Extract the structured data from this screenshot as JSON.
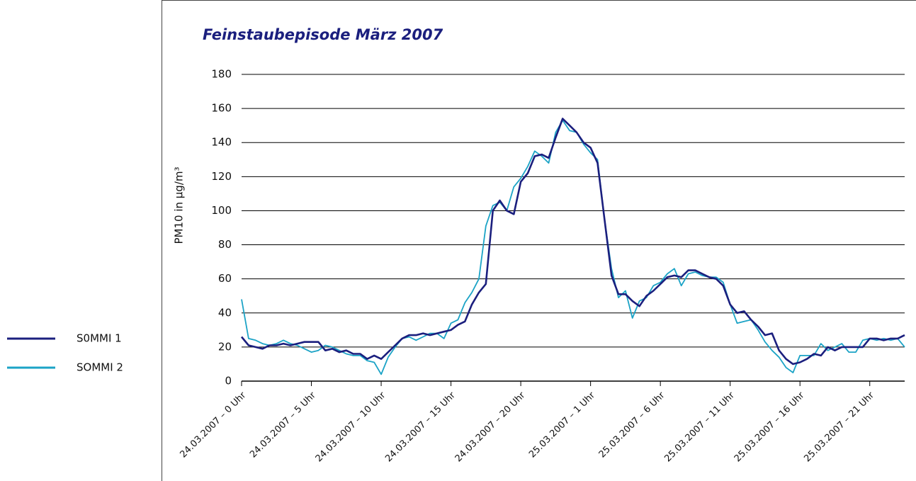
{
  "chart_data": {
    "type": "line",
    "title": "Feinstaubepisode März 2007",
    "y_label": "PM10 in µg/m³",
    "categories": [
      "24.03.2007 – 0 Uhr",
      null,
      null,
      null,
      null,
      null,
      null,
      null,
      null,
      null,
      "24.03.2007 – 5 Uhr",
      null,
      null,
      null,
      null,
      null,
      null,
      null,
      null,
      null,
      "24.03.2007 – 10 Uhr",
      null,
      null,
      null,
      null,
      null,
      null,
      null,
      null,
      null,
      "24.03.2007 – 15 Uhr",
      null,
      null,
      null,
      null,
      null,
      null,
      null,
      null,
      null,
      "24.03.2007 – 20 Uhr",
      null,
      null,
      null,
      null,
      null,
      null,
      null,
      null,
      null,
      "25.03.2007 – 1 Uhr",
      null,
      null,
      null,
      null,
      null,
      null,
      null,
      null,
      null,
      "25.03.2007 – 6 Uhr",
      null,
      null,
      null,
      null,
      null,
      null,
      null,
      null,
      null,
      "25.03.2007 – 11 Uhr",
      null,
      null,
      null,
      null,
      null,
      null,
      null,
      null,
      null,
      "25.03.2007 – 16 Uhr",
      null,
      null,
      null,
      null,
      null,
      null,
      null,
      null,
      null,
      "25.03.2007 – 21 Uhr",
      null,
      null,
      null,
      null,
      null
    ],
    "series": [
      {
        "name": "S0MMI 1",
        "color": "#1b1f7e",
        "values": [
          26,
          21,
          20,
          19,
          21,
          21,
          22,
          21,
          22,
          23,
          23,
          23,
          18,
          19,
          17,
          18,
          16,
          16,
          13,
          15,
          13,
          17,
          21,
          25,
          27,
          27,
          28,
          27,
          28,
          29,
          30,
          33,
          35,
          45,
          52,
          57,
          100,
          106,
          100,
          98,
          117,
          122,
          132,
          133,
          131,
          143,
          154,
          150,
          146,
          140,
          137,
          128,
          95,
          62,
          51,
          51,
          47,
          44,
          50,
          53,
          57,
          61,
          62,
          61,
          65,
          65,
          63,
          61,
          60,
          56,
          45,
          40,
          41,
          36,
          32,
          27,
          28,
          18,
          13,
          10,
          11,
          13,
          16,
          15,
          20,
          18,
          20,
          20,
          20,
          20,
          25,
          25,
          24,
          25,
          25,
          27
        ]
      },
      {
        "name": "SOMMI 2",
        "color": "#1ba3c6",
        "values": [
          48,
          25,
          24,
          22,
          21,
          22,
          24,
          22,
          21,
          19,
          17,
          18,
          21,
          20,
          18,
          16,
          15,
          15,
          12,
          11,
          4,
          14,
          20,
          25,
          26,
          24,
          26,
          28,
          28,
          25,
          34,
          36,
          46,
          52,
          60,
          91,
          103,
          105,
          100,
          114,
          119,
          126,
          135,
          132,
          128,
          146,
          153,
          147,
          146,
          139,
          134,
          130,
          95,
          66,
          49,
          53,
          37,
          47,
          49,
          56,
          58,
          63,
          66,
          56,
          63,
          64,
          62,
          61,
          61,
          58,
          45,
          34,
          35,
          36,
          30,
          23,
          18,
          14,
          8,
          5,
          15,
          15,
          15,
          22,
          18,
          20,
          22,
          17,
          17,
          24,
          25,
          24,
          25,
          24,
          25,
          20
        ]
      }
    ],
    "ylim": [
      0,
      180
    ],
    "yticks": [
      0,
      20,
      40,
      60,
      80,
      100,
      120,
      140,
      160,
      180
    ],
    "grid": true,
    "legend": "left"
  }
}
